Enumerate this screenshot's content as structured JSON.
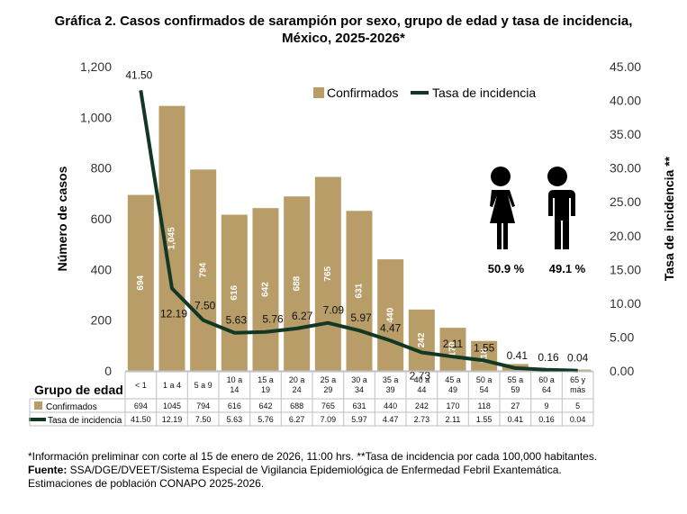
{
  "title_lines": [
    "Gráfica 2. Casos confirmados de sarampión por sexo, grupo de edad y tasa de incidencia,",
    "México, 2025-2026*"
  ],
  "colors": {
    "bar": "#b89d68",
    "line": "#123825",
    "bar_label": "#ffffff"
  },
  "chart_data": {
    "type": "bar",
    "categories": [
      "< 1",
      "1 a 4",
      "5 a 9",
      "10 a 14",
      "15 a 19",
      "20 a 24",
      "25 a 29",
      "30 a 34",
      "35 a 39",
      "40 a 44",
      "45 a 49",
      "50 a 54",
      "55 a 59",
      "60 a 64",
      "65 y más"
    ],
    "category_labels": [
      [
        "< 1"
      ],
      [
        "1 a 4"
      ],
      [
        "5 a 9"
      ],
      [
        "10 a",
        "14"
      ],
      [
        "15 a",
        "19"
      ],
      [
        "20 a",
        "24"
      ],
      [
        "25 a",
        "29"
      ],
      [
        "30 a",
        "34"
      ],
      [
        "35 a",
        "39"
      ],
      [
        "40 a",
        "44"
      ],
      [
        "45 a",
        "49"
      ],
      [
        "50 a",
        "54"
      ],
      [
        "55 a",
        "59"
      ],
      [
        "60 a",
        "64"
      ],
      [
        "65 y",
        "más"
      ]
    ],
    "series": [
      {
        "name": "Confirmados",
        "kind": "bar",
        "axis": "left",
        "values": [
          694,
          1045,
          794,
          616,
          642,
          688,
          765,
          631,
          440,
          242,
          170,
          118,
          27,
          9,
          5
        ],
        "bar_labels": [
          "694",
          "1,045",
          "794",
          "616",
          "642",
          "688",
          "765",
          "631",
          "440",
          "242",
          "170",
          "118",
          "",
          "",
          ""
        ]
      },
      {
        "name": "Tasa de incidencia",
        "kind": "line",
        "axis": "right",
        "values": [
          41.5,
          12.19,
          7.5,
          5.63,
          5.76,
          6.27,
          7.09,
          5.97,
          4.47,
          2.73,
          2.11,
          1.55,
          0.41,
          0.16,
          0.04
        ],
        "point_labels": [
          "41.50",
          "12.19",
          "7.50",
          "5.63",
          "5.76",
          "6.27",
          "7.09",
          "5.97",
          "4.47",
          "2.73",
          "2.11",
          "1.55",
          "0.41",
          "0.16",
          "0.04"
        ]
      }
    ],
    "ylabel": "Número de casos",
    "y2label": "Tasa de incidencia **",
    "ylim": [
      0,
      1200
    ],
    "y2lim": [
      0,
      45
    ],
    "yticks": [
      "0",
      "200",
      "400",
      "600",
      "800",
      "1,000",
      "1,200"
    ],
    "y2ticks": [
      "0.00",
      "5.00",
      "10.00",
      "15.00",
      "20.00",
      "25.00",
      "30.00",
      "35.00",
      "40.00",
      "45.00"
    ],
    "legend": [
      "Confirmados",
      "Tasa de incidencia"
    ],
    "legend_position": "top-right",
    "table": {
      "header": "Grupo de edad",
      "rows": [
        {
          "label": "Confirmados",
          "values": [
            "694",
            "1045",
            "794",
            "616",
            "642",
            "688",
            "765",
            "631",
            "440",
            "242",
            "170",
            "118",
            "27",
            "9",
            "5"
          ]
        },
        {
          "label": "Tasa de incidencia",
          "values": [
            "41.50",
            "12.19",
            "7.50",
            "5.63",
            "5.76",
            "6.27",
            "7.09",
            "5.97",
            "4.47",
            "2.73",
            "2.11",
            "1.55",
            "0.41",
            "0.16",
            "0.04"
          ]
        }
      ]
    },
    "sex": [
      {
        "icon": "female-icon",
        "percent": "50.9 %"
      },
      {
        "icon": "male-icon",
        "percent": "49.1 %"
      }
    ]
  },
  "notes": {
    "line1": "*Información preliminar con corte al 15 de enero de 2026, 11:00 hrs. **Tasa de incidencia por cada 100,000 habitantes.",
    "source_label": "Fuente:",
    "source_text": " SSA/DGE/DVEET/Sistema Especial de Vigilancia Epidemiológica de Enfermedad Febril Exantemática.",
    "line3": "Estimaciones de población CONAPO 2025-2026."
  }
}
